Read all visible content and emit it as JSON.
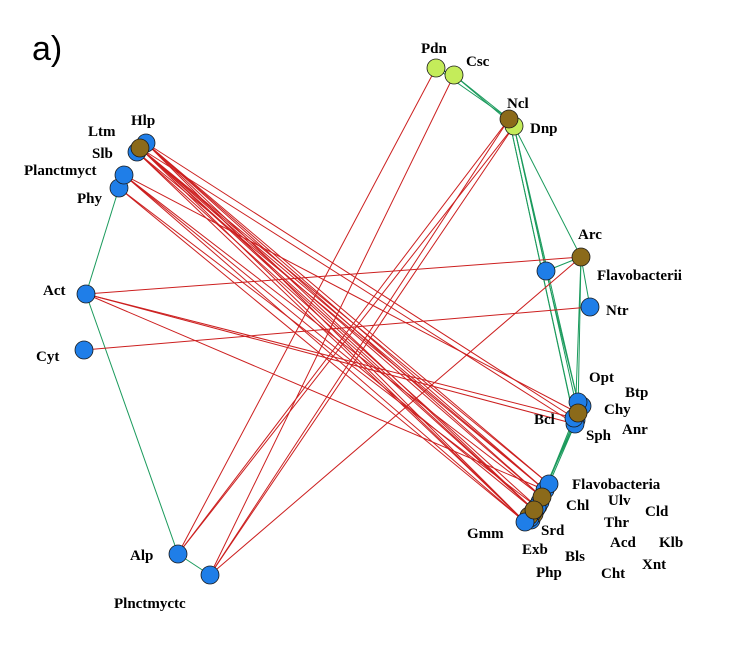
{
  "panel_label": "a)",
  "colors": {
    "blue": "#1f7ee8",
    "brown": "#8b6a1a",
    "lime": "#c4ec5a",
    "positive_edge": "#1a9a5c",
    "negative_edge": "#cc1f1f"
  },
  "nodes": [
    {
      "id": "Hlp",
      "label": "Hlp",
      "color": "blue"
    },
    {
      "id": "Ltm",
      "label": "Ltm",
      "color": "blue"
    },
    {
      "id": "Slb",
      "label": "Slb",
      "color": "brown"
    },
    {
      "id": "Planctmyct",
      "label": "Planctmyct",
      "color": "blue"
    },
    {
      "id": "Phy",
      "label": "Phy",
      "color": "blue"
    },
    {
      "id": "Act",
      "label": "Act",
      "color": "blue"
    },
    {
      "id": "Cyt",
      "label": "Cyt",
      "color": "blue"
    },
    {
      "id": "Alp",
      "label": "Alp",
      "color": "blue"
    },
    {
      "id": "Plnctmyctc",
      "label": "Plnctmyctc",
      "color": "blue"
    },
    {
      "id": "Pdn",
      "label": "Pdn",
      "color": "lime"
    },
    {
      "id": "Csc",
      "label": "Csc",
      "color": "lime"
    },
    {
      "id": "Ncl",
      "label": "Ncl",
      "color": "brown"
    },
    {
      "id": "Dnp",
      "label": "Dnp",
      "color": "lime"
    },
    {
      "id": "Arc",
      "label": "Arc",
      "color": "brown"
    },
    {
      "id": "Flavobacterii",
      "label": "Flavobacterii",
      "color": "blue"
    },
    {
      "id": "Ntr",
      "label": "Ntr",
      "color": "blue"
    },
    {
      "id": "Opt",
      "label": "Opt",
      "color": "blue"
    },
    {
      "id": "Btp",
      "label": "Btp",
      "color": "blue"
    },
    {
      "id": "Chy",
      "label": "Chy",
      "color": "brown"
    },
    {
      "id": "Bcl",
      "label": "Bcl",
      "color": "blue"
    },
    {
      "id": "Sph",
      "label": "Sph",
      "color": "blue"
    },
    {
      "id": "Anr",
      "label": "Anr",
      "color": "blue"
    },
    {
      "id": "Flavobacteria",
      "label": "Flavobacteria",
      "color": "blue"
    },
    {
      "id": "Chl",
      "label": "Chl",
      "color": "blue"
    },
    {
      "id": "Ulv",
      "label": "Ulv",
      "color": "brown"
    },
    {
      "id": "Cld",
      "label": "Cld",
      "color": "blue"
    },
    {
      "id": "Thr",
      "label": "Thr",
      "color": "blue"
    },
    {
      "id": "Srd",
      "label": "Srd",
      "color": "brown"
    },
    {
      "id": "Gmm",
      "label": "Gmm",
      "color": "blue"
    },
    {
      "id": "Acd",
      "label": "Acd",
      "color": "brown"
    },
    {
      "id": "Klb",
      "label": "Klb",
      "color": "blue"
    },
    {
      "id": "Exb",
      "label": "Exb",
      "color": "blue"
    },
    {
      "id": "Bls",
      "label": "Bls",
      "color": "brown"
    },
    {
      "id": "Xnt",
      "label": "Xnt",
      "color": "blue"
    },
    {
      "id": "Php",
      "label": "Php",
      "color": "blue"
    },
    {
      "id": "Cht",
      "label": "Cht",
      "color": "brown"
    }
  ],
  "edges": [
    {
      "from": "Pdn",
      "to": "Csc",
      "sign": "positive"
    },
    {
      "from": "Csc",
      "to": "Ncl",
      "sign": "positive"
    },
    {
      "from": "Csc",
      "to": "Dnp",
      "sign": "positive"
    },
    {
      "from": "Pdn",
      "to": "Ncl",
      "sign": "positive"
    },
    {
      "from": "Ncl",
      "to": "Dnp",
      "sign": "positive"
    },
    {
      "from": "Dnp",
      "to": "Arc",
      "sign": "positive"
    },
    {
      "from": "Dnp",
      "to": "Flavobacterii",
      "sign": "positive"
    },
    {
      "from": "Ncl",
      "to": "Bcl",
      "sign": "positive"
    },
    {
      "from": "Dnp",
      "to": "Chy",
      "sign": "positive"
    },
    {
      "from": "Ncl",
      "to": "Sph",
      "sign": "positive"
    },
    {
      "from": "Dnp",
      "to": "Opt",
      "sign": "positive"
    },
    {
      "from": "Arc",
      "to": "Flavobacterii",
      "sign": "positive"
    },
    {
      "from": "Arc",
      "to": "Ntr",
      "sign": "positive"
    },
    {
      "from": "Arc",
      "to": "Chy",
      "sign": "positive"
    },
    {
      "from": "Arc",
      "to": "Sph",
      "sign": "positive"
    },
    {
      "from": "Flavobacterii",
      "to": "Opt",
      "sign": "positive"
    },
    {
      "from": "Sph",
      "to": "Flavobacteria",
      "sign": "positive"
    },
    {
      "from": "Chy",
      "to": "Chl",
      "sign": "positive"
    },
    {
      "from": "Bcl",
      "to": "Ulv",
      "sign": "positive"
    },
    {
      "from": "Sph",
      "to": "Srd",
      "sign": "positive"
    },
    {
      "from": "Chy",
      "to": "Thr",
      "sign": "positive"
    },
    {
      "from": "Phy",
      "to": "Act",
      "sign": "positive"
    },
    {
      "from": "Act",
      "to": "Alp",
      "sign": "positive"
    },
    {
      "from": "Alp",
      "to": "Plnctmyctc",
      "sign": "positive"
    },
    {
      "from": "Hlp",
      "to": "Flavobacteria",
      "sign": "negative"
    },
    {
      "from": "Hlp",
      "to": "Chl",
      "sign": "negative"
    },
    {
      "from": "Hlp",
      "to": "Ulv",
      "sign": "negative"
    },
    {
      "from": "Hlp",
      "to": "Srd",
      "sign": "negative"
    },
    {
      "from": "Hlp",
      "to": "Gmm",
      "sign": "negative"
    },
    {
      "from": "Slb",
      "to": "Flavobacteria",
      "sign": "negative"
    },
    {
      "from": "Slb",
      "to": "Chl",
      "sign": "negative"
    },
    {
      "from": "Slb",
      "to": "Ulv",
      "sign": "negative"
    },
    {
      "from": "Slb",
      "to": "Srd",
      "sign": "negative"
    },
    {
      "from": "Slb",
      "to": "Thr",
      "sign": "negative"
    },
    {
      "from": "Slb",
      "to": "Gmm",
      "sign": "negative"
    },
    {
      "from": "Ltm",
      "to": "Chl",
      "sign": "negative"
    },
    {
      "from": "Ltm",
      "to": "Srd",
      "sign": "negative"
    },
    {
      "from": "Ltm",
      "to": "Gmm",
      "sign": "negative"
    },
    {
      "from": "Planctmyct",
      "to": "Ulv",
      "sign": "negative"
    },
    {
      "from": "Planctmyct",
      "to": "Srd",
      "sign": "negative"
    },
    {
      "from": "Planctmyct",
      "to": "Gmm",
      "sign": "negative"
    },
    {
      "from": "Phy",
      "to": "Thr",
      "sign": "negative"
    },
    {
      "from": "Phy",
      "to": "Gmm",
      "sign": "negative"
    },
    {
      "from": "Hlp",
      "to": "Bcl",
      "sign": "negative"
    },
    {
      "from": "Slb",
      "to": "Sph",
      "sign": "negative"
    },
    {
      "from": "Planctmyct",
      "to": "Chy",
      "sign": "negative"
    },
    {
      "from": "Act",
      "to": "Arc",
      "sign": "negative"
    },
    {
      "from": "Act",
      "to": "Bcl",
      "sign": "negative"
    },
    {
      "from": "Act",
      "to": "Sph",
      "sign": "negative"
    },
    {
      "from": "Act",
      "to": "Chl",
      "sign": "negative"
    },
    {
      "from": "Cyt",
      "to": "Ntr",
      "sign": "negative"
    },
    {
      "from": "Pdn",
      "to": "Alp",
      "sign": "negative"
    },
    {
      "from": "Csc",
      "to": "Plnctmyctc",
      "sign": "negative"
    },
    {
      "from": "Ncl",
      "to": "Alp",
      "sign": "negative"
    },
    {
      "from": "Ncl",
      "to": "Plnctmyctc",
      "sign": "negative"
    },
    {
      "from": "Dnp",
      "to": "Plnctmyctc",
      "sign": "negative"
    },
    {
      "from": "Dnp",
      "to": "Alp",
      "sign": "negative"
    },
    {
      "from": "Arc",
      "to": "Plnctmyctc",
      "sign": "negative"
    }
  ]
}
